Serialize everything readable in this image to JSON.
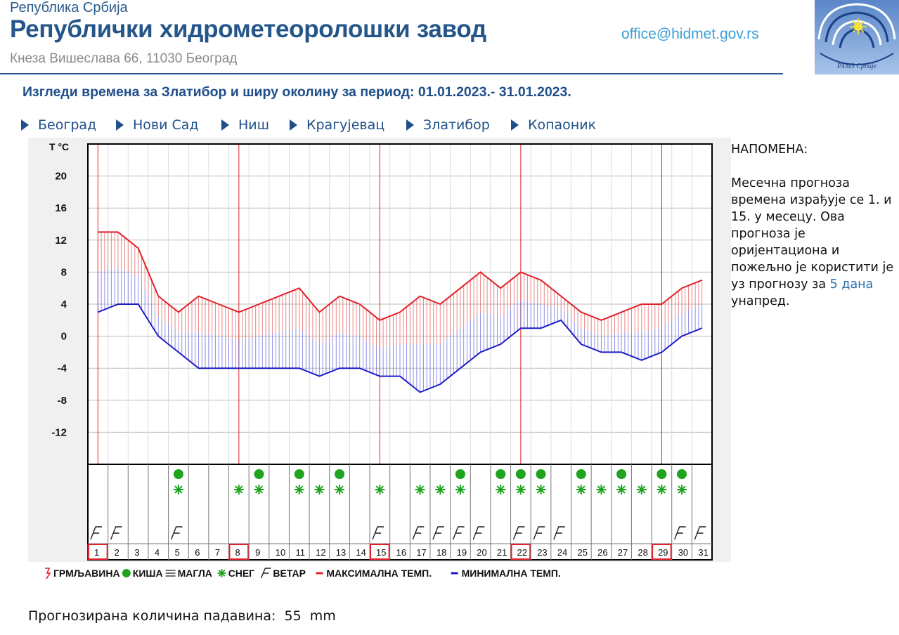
{
  "header": {
    "republic": "Република Србија",
    "institution": "Републички хидрометеоролошки завод",
    "address": "Кнеза Вишеслава 66, 11030 Београд",
    "email": "office@hidmet.gov.rs",
    "logo_text": "РХМЗ Србије"
  },
  "page_title": "Изгледи времена за Златибор и ширу околину за период: 01.01.2023.- 31.01.2023.",
  "nav": {
    "cities": [
      "Београд",
      "Нови Сад",
      "Ниш",
      "Крагујевац",
      "Златибор",
      "Копаоник"
    ]
  },
  "note": {
    "title": "НАПОМЕНА:",
    "text_before": "Месечна прогноза времена израђује се 1. и 15. у месецу. Ова прогноза је оријентациона и пожељно је користити је уз прогнозу за",
    "link_text": "5 дана",
    "text_after": "унапред."
  },
  "precipitation": {
    "label": "Прогнозирана количина падавина:",
    "value": "55",
    "unit": "mm"
  },
  "chart_data": {
    "type": "line",
    "ylabel": "T °C",
    "yticks": [
      20,
      16,
      12,
      8,
      4,
      0,
      -4,
      -8,
      -12
    ],
    "ylim": [
      -16,
      24
    ],
    "x": [
      1,
      2,
      3,
      4,
      5,
      6,
      7,
      8,
      9,
      10,
      11,
      12,
      13,
      14,
      15,
      16,
      17,
      18,
      19,
      20,
      21,
      22,
      23,
      24,
      25,
      26,
      27,
      28,
      29,
      30,
      31
    ],
    "series": [
      {
        "name": "МАКСИМАЛНА ТЕМП.",
        "color": "#e0202a",
        "values": [
          13,
          13,
          11,
          5,
          3,
          5,
          4,
          3,
          4,
          5,
          6,
          3,
          5,
          4,
          2,
          3,
          5,
          4,
          6,
          8,
          6,
          8,
          7,
          5,
          3,
          2,
          3,
          4,
          4,
          6,
          7
        ]
      },
      {
        "name": "МИНИМАЛНА ТЕМП.",
        "color": "#1c1cc4",
        "values": [
          3,
          4,
          4,
          0,
          -2,
          -4,
          -4,
          -4,
          -4,
          -4,
          -4,
          -5,
          -4,
          -4,
          -5,
          -5,
          -7,
          -6,
          -4,
          -2,
          -1,
          1,
          1,
          2,
          -1,
          -2,
          -2,
          -3,
          -2,
          0,
          1
        ]
      }
    ],
    "highlighted_days": [
      1,
      8,
      15,
      22,
      29
    ],
    "weather": {
      "rain": [
        5,
        9,
        11,
        13,
        19,
        21,
        22,
        23,
        25,
        27,
        29,
        30
      ],
      "snow": [
        5,
        8,
        9,
        11,
        12,
        13,
        15,
        17,
        18,
        19,
        21,
        22,
        23,
        25,
        26,
        27,
        28,
        29,
        30
      ],
      "wind": [
        1,
        2,
        5,
        15,
        17,
        18,
        19,
        20,
        22,
        23,
        24,
        30,
        31
      ]
    },
    "legend": [
      "ГРМЉАВИНА",
      "КИША",
      "МАГЛА",
      "СНЕГ",
      "ВЕТАР",
      "МАКСИМАЛНА ТЕМП.",
      "МИНИМАЛНА ТЕМП."
    ],
    "legend_placement": "bottom",
    "colors": {
      "thunder": "#e0202a",
      "rain": "#1ea41e",
      "fog": "#333333",
      "snow": "#1ea41e",
      "wind": "#222222",
      "highlight": "#e0202a"
    }
  }
}
